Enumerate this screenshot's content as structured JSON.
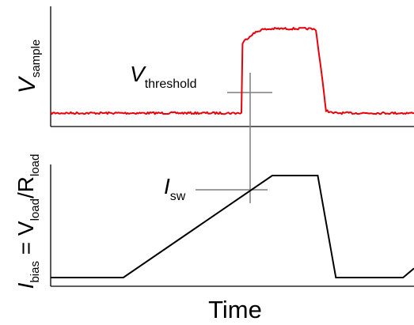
{
  "chart_data": [
    {
      "type": "line",
      "ylabel": {
        "symbol": "V",
        "subscript": "sample"
      },
      "annotation": {
        "symbol": "V",
        "subscript": "threshold"
      },
      "axes": [
        "left",
        "bottom"
      ],
      "ticks": "none",
      "grid": false,
      "legend": "none",
      "series": [
        {
          "color": "#e8000b",
          "style": "noisy",
          "points": [
            [
              0.0,
              0.0
            ],
            [
              0.525,
              0.0
            ],
            [
              0.528,
              0.76
            ],
            [
              0.534,
              0.79
            ],
            [
              0.555,
              0.86
            ],
            [
              0.58,
              0.91
            ],
            [
              0.62,
              0.92
            ],
            [
              0.71,
              0.92
            ],
            [
              0.73,
              0.91
            ],
            [
              0.745,
              0.45
            ],
            [
              0.758,
              0.03
            ],
            [
              0.775,
              0.0
            ],
            [
              1.0,
              0.0
            ]
          ]
        }
      ],
      "ylim": [
        0,
        1
      ]
    },
    {
      "type": "line",
      "ylabel": {
        "parts": [
          {
            "text": "I"
          },
          {
            "text": "bias",
            "sub": true
          },
          {
            "text": " = V"
          },
          {
            "text": "load",
            "sub": true
          },
          {
            "text": "/R"
          },
          {
            "text": "load",
            "sub": true
          }
        ]
      },
      "xlabel": "Time",
      "annotation": {
        "symbol": "I",
        "subscript": "sw"
      },
      "axes": [
        "left",
        "bottom"
      ],
      "ticks": "none",
      "grid": false,
      "legend": "none",
      "series": [
        {
          "color": "#000000",
          "style": "solid",
          "points": [
            [
              0.0,
              0.0
            ],
            [
              0.2,
              0.0
            ],
            [
              0.61,
              1.0
            ],
            [
              0.735,
              1.0
            ],
            [
              0.785,
              0.0
            ],
            [
              0.97,
              0.0
            ],
            [
              1.0,
              0.09
            ]
          ]
        }
      ],
      "ylim": [
        0,
        1
      ]
    }
  ],
  "colors": {
    "signal": "#e8000b",
    "ramp": "#000000",
    "marker": "#7f7f7f"
  }
}
